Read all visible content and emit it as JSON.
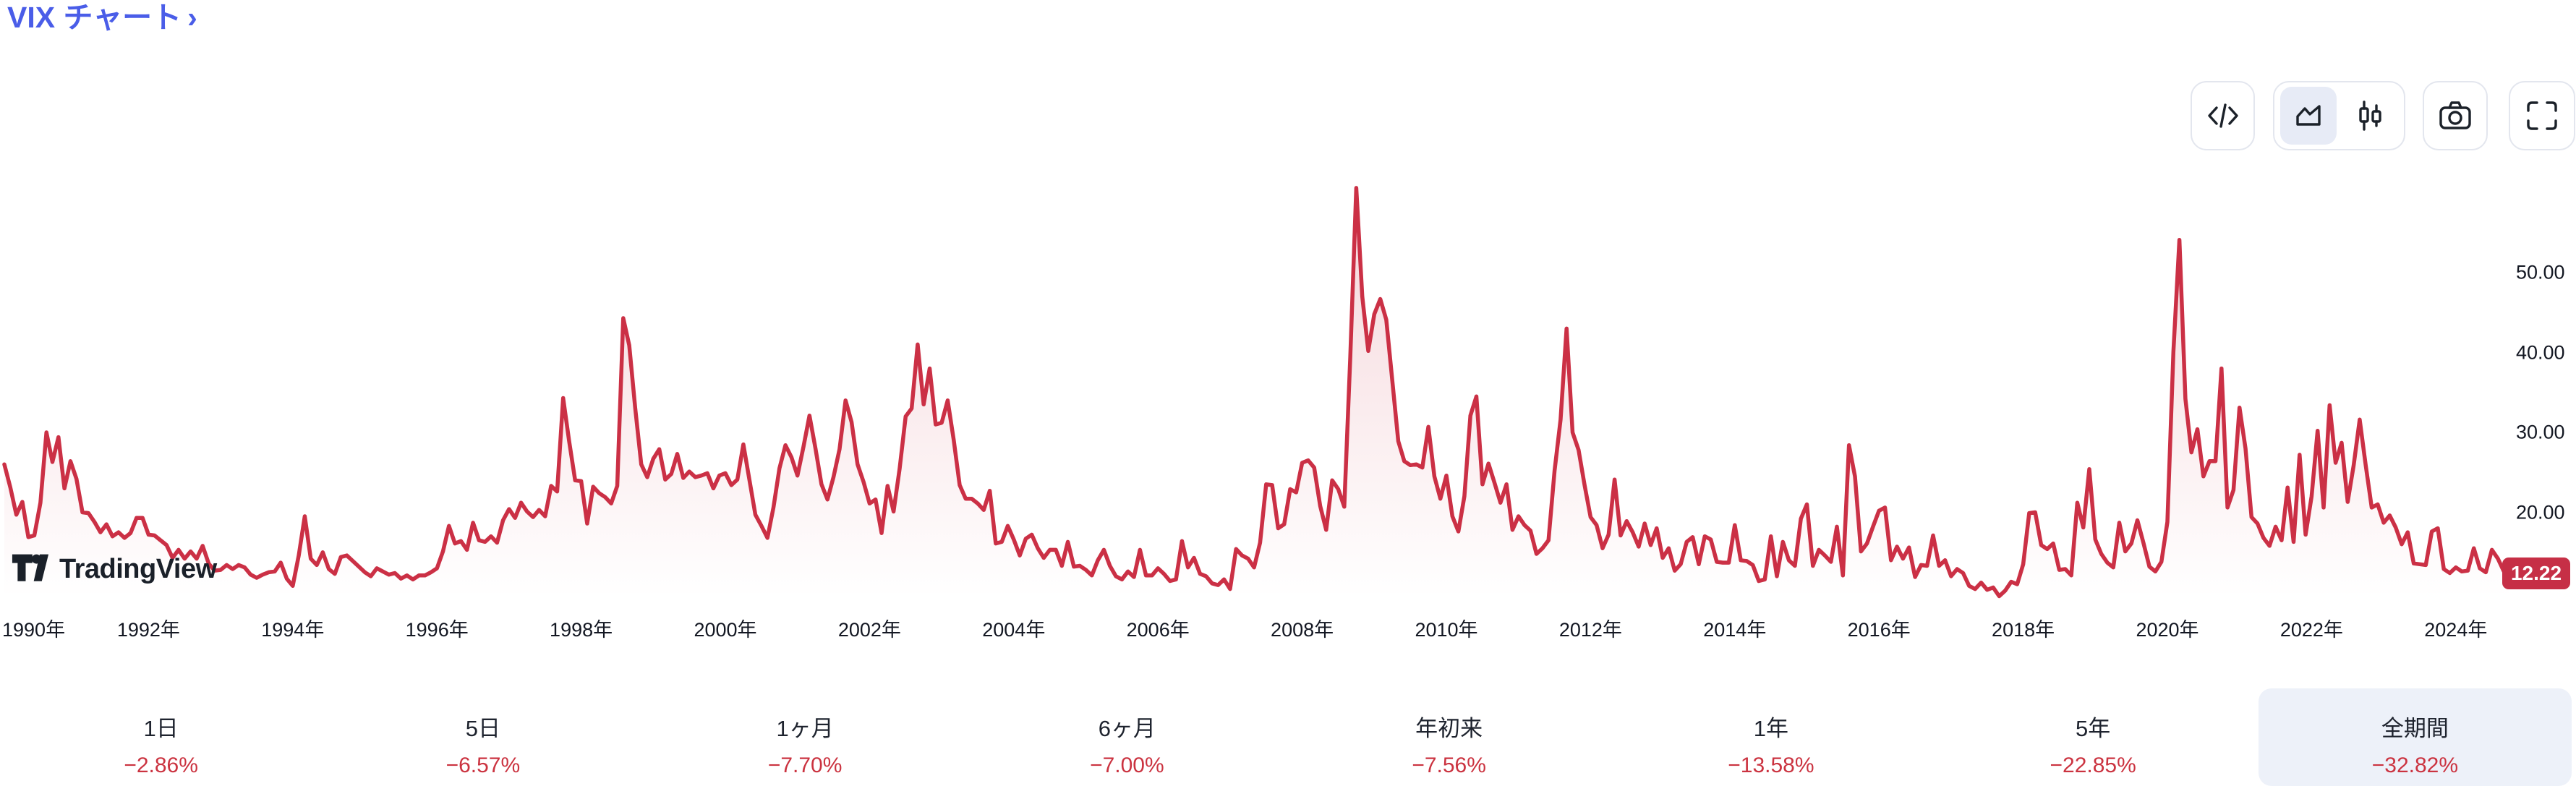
{
  "page": {
    "title_link": "VIX チャート",
    "title_arrow": "›"
  },
  "toolbar": {
    "buttons": [
      {
        "id": "embed-code",
        "icon": "code-icon"
      },
      {
        "id": "chart-style-switch",
        "icons": [
          "area-chart-icon",
          "candlestick-icon"
        ],
        "selected": "area"
      },
      {
        "id": "snapshot",
        "icon": "camera-icon"
      },
      {
        "id": "fullscreen",
        "icon": "fullscreen-icon"
      }
    ]
  },
  "chart": {
    "watermark": "TradingView",
    "price_label": "12.22",
    "y_axis": [
      {
        "value": 50,
        "label": "50.00"
      },
      {
        "value": 40,
        "label": "40.00"
      },
      {
        "value": 30,
        "label": "30.00"
      },
      {
        "value": 20,
        "label": "20.00"
      }
    ],
    "x_axis": [
      {
        "year": 1990,
        "label": "1990年"
      },
      {
        "year": 1992,
        "label": "1992年"
      },
      {
        "year": 1994,
        "label": "1994年"
      },
      {
        "year": 1996,
        "label": "1996年"
      },
      {
        "year": 1998,
        "label": "1998年"
      },
      {
        "year": 2000,
        "label": "2000年"
      },
      {
        "year": 2002,
        "label": "2002年"
      },
      {
        "year": 2004,
        "label": "2004年"
      },
      {
        "year": 2006,
        "label": "2006年"
      },
      {
        "year": 2008,
        "label": "2008年"
      },
      {
        "year": 2010,
        "label": "2010年"
      },
      {
        "year": 2012,
        "label": "2012年"
      },
      {
        "year": 2014,
        "label": "2014年"
      },
      {
        "year": 2016,
        "label": "2016年"
      },
      {
        "year": 2018,
        "label": "2018年"
      },
      {
        "year": 2020,
        "label": "2020年"
      },
      {
        "year": 2022,
        "label": "2022年"
      },
      {
        "year": 2024,
        "label": "2024年"
      }
    ]
  },
  "periods": [
    {
      "label": "1日",
      "change": "−2.86%",
      "selected": false
    },
    {
      "label": "5日",
      "change": "−6.57%",
      "selected": false
    },
    {
      "label": "1ヶ月",
      "change": "−7.70%",
      "selected": false
    },
    {
      "label": "6ヶ月",
      "change": "−7.00%",
      "selected": false
    },
    {
      "label": "年初来",
      "change": "−7.56%",
      "selected": false
    },
    {
      "label": "1年",
      "change": "−13.58%",
      "selected": false
    },
    {
      "label": "5年",
      "change": "−22.85%",
      "selected": false
    },
    {
      "label": "全期間",
      "change": "−32.82%",
      "selected": true
    }
  ],
  "chart_data": {
    "type": "area",
    "title": "VIX チャート",
    "legend": false,
    "grid": false,
    "ylim": [
      9,
      62
    ],
    "y_ticks": [
      20,
      30,
      40,
      50
    ],
    "x_range_years": [
      1990,
      2024.75
    ],
    "last_price": 12.22,
    "line_color": "#CB3045",
    "fill_top": "rgba(203,48,69,0.20)",
    "fill_bottom": "rgba(203,48,69,0.0)",
    "series": [
      {
        "name": "VIX",
        "frequency": "monthly-close",
        "start": "1990-01",
        "values": [
          26.0,
          23.1,
          19.7,
          21.3,
          16.9,
          17.1,
          21.2,
          30.0,
          26.3,
          29.4,
          23.0,
          26.4,
          24.2,
          20.0,
          19.9,
          18.8,
          17.5,
          18.5,
          17.0,
          17.5,
          16.8,
          17.4,
          19.3,
          19.3,
          17.2,
          17.1,
          16.5,
          15.9,
          14.3,
          15.3,
          14.2,
          15.1,
          14.2,
          15.8,
          13.6,
          12.7,
          12.8,
          13.4,
          12.9,
          13.4,
          13.1,
          12.2,
          11.8,
          12.2,
          12.5,
          12.6,
          13.7,
          11.7,
          10.8,
          14.6,
          19.5,
          14.2,
          13.4,
          15.0,
          12.9,
          12.3,
          14.4,
          14.6,
          13.9,
          13.2,
          12.5,
          12.0,
          13.0,
          12.6,
          12.2,
          12.4,
          11.7,
          12.1,
          11.6,
          12.1,
          12.1,
          12.5,
          13.0,
          15.1,
          18.3,
          16.1,
          16.4,
          15.3,
          18.7,
          16.5,
          16.3,
          17.0,
          16.2,
          19.0,
          20.4,
          19.3,
          21.2,
          20.1,
          19.4,
          20.3,
          19.5,
          23.3,
          22.6,
          34.3,
          28.9,
          24.0,
          23.9,
          18.6,
          23.2,
          22.4,
          21.9,
          21.1,
          23.3,
          44.3,
          40.9,
          33.0,
          26.0,
          24.4,
          26.7,
          27.9,
          24.1,
          24.8,
          27.3,
          24.3,
          25.1,
          24.4,
          24.6,
          24.9,
          23.0,
          24.6,
          24.9,
          23.4,
          24.1,
          28.5,
          24.1,
          19.7,
          18.3,
          16.8,
          20.6,
          25.5,
          28.4,
          26.9,
          24.6,
          28.2,
          32.1,
          28.0,
          23.5,
          21.6,
          24.4,
          27.9,
          34.0,
          31.3,
          26.0,
          23.8,
          21.1,
          21.6,
          17.4,
          23.3,
          20.1,
          25.4,
          32.0,
          33.0,
          41.0,
          33.5,
          38.0,
          31.0,
          31.2,
          34.0,
          29.1,
          23.4,
          21.7,
          21.7,
          21.1,
          20.3,
          22.7,
          16.1,
          16.3,
          18.3,
          16.6,
          14.6,
          16.7,
          17.2,
          15.5,
          14.3,
          15.3,
          15.3,
          13.3,
          16.3,
          13.2,
          13.3,
          12.8,
          12.1,
          14.0,
          15.3,
          13.3,
          12.0,
          11.6,
          12.6,
          11.9,
          15.3,
          12.1,
          12.1,
          13.0,
          12.3,
          11.4,
          11.6,
          16.4,
          13.1,
          14.3,
          12.3,
          12.0,
          11.1,
          10.9,
          11.6,
          10.4,
          15.4,
          14.6,
          14.2,
          13.1,
          16.2,
          23.5,
          23.4,
          18.0,
          18.5,
          22.9,
          22.5,
          26.2,
          26.5,
          25.6,
          20.8,
          17.8,
          24.0,
          22.9,
          20.7,
          39.4,
          60.6,
          47.0,
          40.2,
          44.8,
          46.7,
          44.1,
          36.5,
          28.9,
          26.4,
          25.9,
          26.0,
          25.6,
          30.7,
          24.5,
          21.7,
          24.6,
          19.5,
          17.6,
          22.0,
          32.1,
          34.5,
          23.5,
          26.1,
          23.7,
          21.2,
          23.5,
          17.8,
          19.5,
          18.4,
          17.7,
          14.8,
          15.5,
          16.5,
          25.2,
          31.6,
          43.0,
          30.0,
          27.8,
          23.4,
          19.4,
          18.4,
          15.5,
          17.2,
          24.1,
          17.1,
          18.9,
          17.5,
          15.7,
          18.6,
          15.9,
          18.0,
          14.3,
          15.5,
          12.7,
          13.5,
          16.3,
          16.9,
          13.5,
          17.0,
          16.6,
          13.8,
          13.7,
          13.7,
          18.4,
          14.0,
          13.9,
          13.4,
          11.4,
          11.6,
          17.0,
          12.0,
          16.3,
          14.0,
          13.3,
          19.2,
          21.0,
          13.3,
          15.3,
          14.6,
          13.8,
          18.2,
          12.1,
          28.4,
          24.5,
          15.1,
          16.1,
          18.2,
          20.2,
          20.6,
          14.0,
          15.7,
          14.2,
          15.6,
          11.9,
          13.4,
          13.3,
          17.1,
          13.3,
          14.0,
          12.0,
          12.9,
          12.4,
          10.8,
          10.4,
          11.2,
          10.3,
          10.6,
          9.5,
          10.2,
          11.3,
          11.0,
          13.5,
          19.9,
          20.0,
          15.9,
          15.4,
          16.1,
          12.8,
          12.9,
          12.1,
          21.2,
          18.1,
          25.4,
          16.6,
          14.8,
          13.7,
          13.1,
          18.7,
          15.1,
          16.1,
          19.0,
          16.2,
          13.2,
          12.6,
          13.8,
          18.8,
          40.1,
          54.1,
          34.2,
          27.5,
          30.4,
          24.5,
          26.4,
          26.4,
          38.0,
          20.6,
          22.8,
          33.1,
          28.0,
          19.4,
          18.6,
          16.8,
          15.8,
          18.2,
          16.5,
          23.1,
          16.3,
          27.2,
          17.2,
          22.0,
          30.2,
          20.6,
          33.4,
          26.2,
          28.7,
          21.3,
          25.9,
          31.6,
          25.9,
          20.6,
          21.0,
          18.7,
          19.6,
          18.1,
          16.0,
          17.5,
          13.6,
          13.5,
          13.4,
          17.6,
          18.0,
          12.9,
          12.4,
          13.1,
          12.6,
          12.7,
          15.5,
          13.0,
          12.5,
          15.3,
          14.2,
          12.6,
          12.22
        ]
      }
    ]
  },
  "colors": {
    "title_blue": "#4A5DE8",
    "line_red": "#CB3045",
    "tag_red": "#C62F46",
    "percent_red": "#CB3340",
    "text_dark": "#131722",
    "selected_bg": "#EDF1F9",
    "chip_bg": "#E7EBF6",
    "button_border": "#E3E6EE"
  }
}
